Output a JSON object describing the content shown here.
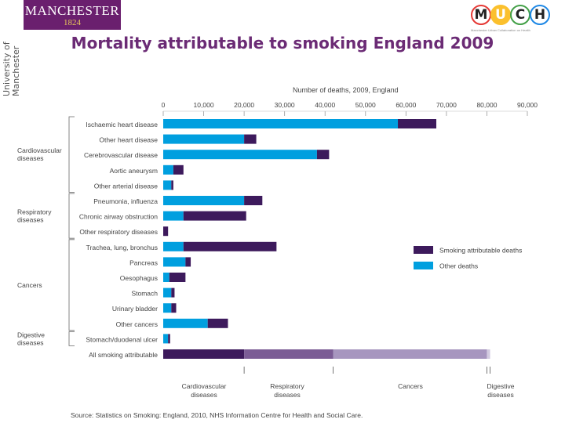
{
  "branding": {
    "university_side": "University of Manchester",
    "logo_name": "MANCHESTER",
    "logo_year": "1824",
    "much_letters": [
      "M",
      "U",
      "C",
      "H"
    ],
    "much_colors": [
      "#e53935",
      "#fbc02d",
      "#43a047",
      "#1e88e5"
    ],
    "much_tagline": "Manchester Urban Collaboration on Health"
  },
  "slide": {
    "title": "Mortality attributable to smoking England 2009"
  },
  "chart_data": {
    "type": "bar",
    "stacked": true,
    "orientation": "horizontal",
    "axis_title": "Number of deaths, 2009, England",
    "xlim": [
      0,
      90000
    ],
    "x_ticks": [
      "0",
      "10,000",
      "20,000",
      "30,000",
      "40,000",
      "50,000",
      "60,000",
      "70,000",
      "80,000",
      "90,000"
    ],
    "categories": [
      "Ischaemic heart disease",
      "Other heart disease",
      "Cerebrovascular disease",
      "Aortic aneurysm",
      "Other arterial disease",
      "Pneumonia, influenza",
      "Chronic airway obstruction",
      "Other respiratory diseases",
      "Trachea, lung, bronchus",
      "Pancreas",
      "Oesophagus",
      "Stomach",
      "Urinary bladder",
      "Other cancers",
      "Stomach/duodenal ulcer",
      "All smoking attributable"
    ],
    "series": [
      {
        "name": "Other deaths",
        "color": "#009fdf",
        "values": [
          58000,
          20000,
          38000,
          2500,
          2000,
          20000,
          5000,
          0,
          5000,
          5500,
          1500,
          2000,
          2000,
          11000,
          1200,
          0
        ]
      },
      {
        "name": "Smoking attributable deaths",
        "color": "#3d1a5c",
        "values": [
          9500,
          3000,
          3000,
          2500,
          500,
          4500,
          15500,
          1200,
          23000,
          1300,
          4000,
          800,
          1200,
          5000,
          500,
          0
        ]
      }
    ],
    "group_labels": [
      {
        "name": "Cardiovascular diseases",
        "rows": [
          0,
          4
        ]
      },
      {
        "name": "Respiratory diseases",
        "rows": [
          5,
          7
        ]
      },
      {
        "name": "Cancers",
        "rows": [
          8,
          13
        ]
      },
      {
        "name": "Digestive diseases",
        "rows": [
          14,
          14
        ]
      }
    ],
    "total_bar": {
      "segments": [
        {
          "name": "Cardiovascular diseases",
          "value": 20000,
          "color": "#3d1a5c"
        },
        {
          "name": "Respiratory diseases",
          "value": 22000,
          "color": "#7b5c95"
        },
        {
          "name": "Cancers",
          "value": 38000,
          "color": "#a796bf"
        },
        {
          "name": "Digestive diseases",
          "value": 800,
          "color": "#d3cbe0"
        }
      ],
      "labels": [
        "Cardiovascular diseases",
        "Respiratory diseases",
        "Cancers",
        "Digestive diseases"
      ]
    },
    "legend": {
      "placement": "right",
      "items": [
        "Smoking attributable deaths",
        "Other deaths"
      ]
    },
    "source": "Source: Statistics on Smoking: England, 2010, NHS Information Centre for Health and Social Care."
  }
}
